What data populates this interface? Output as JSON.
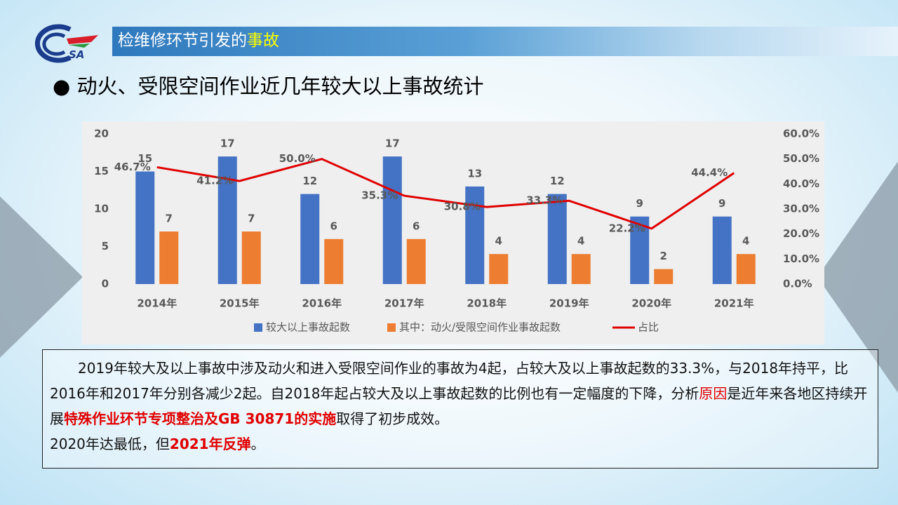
{
  "header": {
    "logo": "SA",
    "title": [
      "检维修环节引发的",
      "事故"
    ]
  },
  "bullet": "动火、受限空间作业近几年较大以上事故统计",
  "chart_data": {
    "type": "bar",
    "categories": [
      "2014年",
      "2015年",
      "2016年",
      "2017年",
      "2018年",
      "2019年",
      "2020年",
      "2021年"
    ],
    "series": [
      {
        "name": "较大以上事故起数",
        "color": "#4472c4",
        "values": [
          15,
          17,
          12,
          17,
          13,
          12,
          9,
          9
        ]
      },
      {
        "name": "其中：动火/受限空间作业事故起数",
        "color": "#ed7d31",
        "values": [
          7,
          7,
          6,
          6,
          4,
          4,
          2,
          4
        ]
      },
      {
        "name": "占比",
        "color": "#e00000",
        "axis": "y2",
        "type": "line",
        "values": [
          46.7,
          41.2,
          50.0,
          35.3,
          30.8,
          33.3,
          22.2,
          44.4
        ],
        "value_labels": [
          "46.7%",
          "41.2%",
          "50.0%",
          "35.3%",
          "30.8%",
          "33.3%",
          "22.2%",
          "44.4%"
        ]
      }
    ],
    "ylim": [
      0,
      20
    ],
    "yticks": [
      0,
      5,
      10,
      15,
      20
    ],
    "y2lim": [
      0,
      60
    ],
    "y2ticks": [
      {
        "value": 0,
        "label": "0.0%"
      },
      {
        "value": 10,
        "label": "10.0%"
      },
      {
        "value": 20,
        "label": "20.0%"
      },
      {
        "value": 30,
        "label": "30.0%"
      },
      {
        "value": 40,
        "label": "40.0%"
      },
      {
        "value": 50,
        "label": "50.0%"
      },
      {
        "value": 60,
        "label": "60.0%"
      }
    ],
    "grid": false,
    "legend": "bottom"
  },
  "paragraph": [
    "2019年较大及以上事故中涉及动火和进入受限空间作业的事故为4起，占较大及以上事故起数的33.3%，与2018年持平，比2016年和2017年分别各减少2起。自2018年起占较大及以上事故起数的比例也有一定幅度的下降，分析",
    "原因",
    "是近年来各地区持续开展",
    "特殊作业环节专项整治及GB 30871的实施",
    "取得了初步成效。",
    "2020年达最低，但",
    "2021年反弹",
    "。"
  ]
}
